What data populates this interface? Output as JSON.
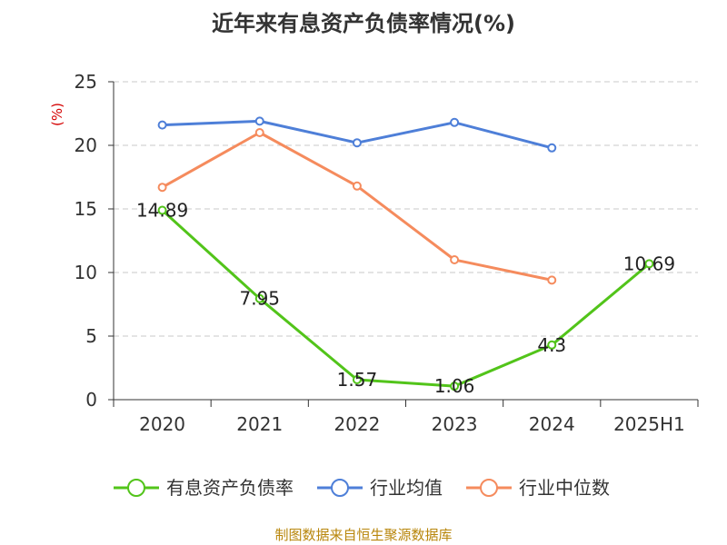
{
  "chart_data": {
    "type": "line",
    "title": "近年来有息资产负债率情况(%)",
    "unit_label": "(%)",
    "categories": [
      "2020",
      "2021",
      "2022",
      "2023",
      "2024",
      "2025H1"
    ],
    "y_ticks": [
      "0",
      "5",
      "10",
      "15",
      "20",
      "25"
    ],
    "ylim": [
      0,
      25
    ],
    "grid": true,
    "legend_position": "bottom",
    "series": [
      {
        "name": "有息资产负债率",
        "color": "#52c41a",
        "values": [
          14.89,
          7.95,
          1.57,
          1.06,
          4.3,
          10.69
        ],
        "labels": [
          "14.89",
          "7.95",
          "1.57",
          "1.06",
          "4.3",
          "10.69"
        ]
      },
      {
        "name": "行业均值",
        "color": "#4e7fd8",
        "values": [
          21.6,
          21.9,
          20.2,
          21.8,
          19.8,
          null
        ]
      },
      {
        "name": "行业中位数",
        "color": "#f58b5d",
        "values": [
          16.7,
          21.0,
          16.8,
          11.0,
          9.4,
          null
        ]
      }
    ],
    "source": "制图数据来自恒生聚源数据库"
  }
}
